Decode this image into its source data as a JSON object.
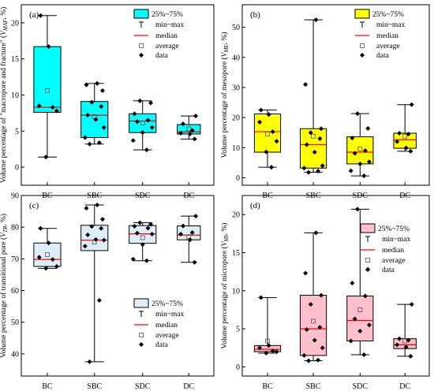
{
  "legend": {
    "box": "25%~75%",
    "range": "min~max",
    "median": "median",
    "average": "average",
    "data": "data"
  },
  "chart_data": [
    {
      "type": "box",
      "panel_label": "(a)",
      "ylabel": "Volume percentage of \"macropore and fracture\" (VMAF, %)",
      "ylabel_main": "Volume percentage of \"macropore and fracture\" (",
      "ylabel_var": "V",
      "ylabel_sub": "MAF",
      "ylabel_end": ", %)",
      "color": "#00ffff",
      "legend_position": "top-right",
      "ylim": [
        -2.5,
        22.5
      ],
      "yticks": [
        0,
        5,
        10,
        15,
        20
      ],
      "categories": [
        "BC",
        "SBC",
        "SDC",
        "DC"
      ],
      "stats": [
        {
          "min": 1.4,
          "q1": 7.6,
          "median": 8.3,
          "q3": 16.7,
          "max": 21.0,
          "mean": 10.6
        },
        {
          "min": 3.2,
          "q1": 4.1,
          "median": 7.2,
          "q3": 9.1,
          "max": 11.6,
          "mean": 7.0
        },
        {
          "min": 2.4,
          "q1": 4.8,
          "median": 6.4,
          "q3": 7.4,
          "max": 9.2,
          "mean": 6.1
        },
        {
          "min": 3.9,
          "q1": 4.6,
          "median": 4.9,
          "q3": 5.9,
          "max": 7.1,
          "mean": 5.3
        }
      ],
      "points": [
        [
          21.0,
          16.7,
          8.5,
          8.3,
          7.8,
          1.4
        ],
        [
          11.6,
          11.4,
          10.6,
          9.0,
          8.4,
          7.2,
          6.6,
          5.5,
          4.1,
          3.4,
          3.2
        ],
        [
          9.2,
          8.9,
          7.4,
          6.5,
          6.3,
          5.5,
          4.8,
          3.7,
          2.4
        ],
        [
          7.1,
          6.0,
          5.1,
          4.7,
          4.6,
          3.9
        ]
      ]
    },
    {
      "type": "box",
      "panel_label": "(b)",
      "ylabel": "Volume percentage of mesopore (VME, %)",
      "ylabel_main": "Volume percentage of mesopore (",
      "ylabel_var": "V",
      "ylabel_sub": "ME",
      "ylabel_end": ", %)",
      "color": "#ffff00",
      "legend_position": "top-right",
      "ylim": [
        -2.5,
        57.5
      ],
      "yticks": [
        0,
        10,
        20,
        30,
        40,
        50
      ],
      "categories": [
        "BC",
        "SBC",
        "SDC",
        "DC"
      ],
      "stats": [
        {
          "min": 3.5,
          "q1": 8.5,
          "median": 15.3,
          "q3": 21.2,
          "max": 22.5,
          "mean": 14.5
        },
        {
          "min": 1.8,
          "q1": 3.2,
          "median": 11.0,
          "q3": 16.3,
          "max": 52.5,
          "mean": 13.8
        },
        {
          "min": 0.6,
          "q1": 4.6,
          "median": 8.5,
          "q3": 13.6,
          "max": 21.3,
          "mean": 9.6
        },
        {
          "min": 8.8,
          "q1": 9.8,
          "median": 12.6,
          "q3": 14.8,
          "max": 24.3,
          "mean": 13.8
        }
      ],
      "points": [
        [
          22.5,
          21.0,
          18.5,
          15.3,
          12.1,
          8.6,
          3.5
        ],
        [
          52.5,
          31.0,
          16.3,
          15.0,
          13.0,
          11.0,
          8.5,
          4.0,
          3.2,
          2.2,
          1.8
        ],
        [
          21.3,
          16.4,
          13.2,
          9.0,
          8.1,
          5.3,
          4.6,
          2.3,
          0.6
        ],
        [
          24.3,
          14.8,
          14.5,
          12.0,
          9.9,
          8.8
        ]
      ]
    },
    {
      "type": "box",
      "panel_label": "(c)",
      "ylabel": "Volume percentage of transitional pore (VTR, %)",
      "ylabel_main": "Volume percentage of transitional pore (",
      "ylabel_var": "V",
      "ylabel_sub": "TR",
      "ylabel_end": ", %)",
      "color": "#ddeef8",
      "legend_position": "bottom-right",
      "ylim": [
        33,
        90
      ],
      "yticks": [
        40,
        50,
        60,
        70,
        80,
        90
      ],
      "categories": [
        "BC",
        "SBC",
        "SDC",
        "DC"
      ],
      "stats": [
        {
          "min": 67.0,
          "q1": 67.6,
          "median": 69.8,
          "q3": 75.0,
          "max": 79.6,
          "mean": 71.3
        },
        {
          "min": 37.5,
          "q1": 72.6,
          "median": 75.9,
          "q3": 80.6,
          "max": 87.0,
          "mean": 75.3
        },
        {
          "min": 69.4,
          "q1": 74.9,
          "median": 77.9,
          "q3": 80.5,
          "max": 81.4,
          "mean": 76.7
        },
        {
          "min": 68.9,
          "q1": 76.0,
          "median": 77.5,
          "q3": 80.4,
          "max": 83.5,
          "mean": 77.0
        }
      ],
      "points": [
        [
          79.6,
          75.0,
          70.5,
          69.8,
          67.6,
          67.0
        ],
        [
          87.0,
          86.0,
          82.5,
          80.2,
          79.6,
          77.6,
          76.1,
          75.9,
          74.0,
          56.9,
          37.5
        ],
        [
          81.4,
          80.9,
          80.3,
          79.7,
          78.1,
          77.8,
          74.5,
          69.9,
          69.4
        ],
        [
          83.5,
          80.4,
          78.3,
          77.8,
          76.0,
          68.9
        ]
      ]
    },
    {
      "type": "box",
      "panel_label": "(d)",
      "ylabel": "Volume percentage of micropore (VMI, %)",
      "ylabel_main": "Volume percentage of micropore (",
      "ylabel_var": "V",
      "ylabel_sub": "MI",
      "ylabel_end": ", %)",
      "color": "#ffc0cb",
      "legend_position": "top-right",
      "ylim": [
        -1.2,
        22.5
      ],
      "yticks": [
        0,
        5,
        10,
        15,
        20
      ],
      "categories": [
        "BC",
        "SBC",
        "SDC",
        "DC"
      ],
      "stats": [
        {
          "min": 1.8,
          "q1": 2.0,
          "median": 2.3,
          "q3": 2.8,
          "max": 9.1,
          "mean": 3.4
        },
        {
          "min": 0.8,
          "q1": 1.5,
          "median": 5.0,
          "q3": 9.4,
          "max": 17.6,
          "mean": 6.0
        },
        {
          "min": 1.6,
          "q1": 3.4,
          "median": 6.1,
          "q3": 9.3,
          "max": 20.7,
          "mean": 7.5
        },
        {
          "min": 1.4,
          "q1": 2.4,
          "median": 2.9,
          "q3": 3.7,
          "max": 8.2,
          "mean": 3.4
        }
      ],
      "points": [
        [
          9.1,
          2.8,
          2.5,
          2.1,
          2.0,
          1.8
        ],
        [
          17.6,
          12.3,
          9.4,
          8.2,
          5.2,
          4.9,
          3.5,
          2.5,
          1.5,
          0.9,
          0.8
        ],
        [
          20.7,
          12.8,
          11.0,
          9.3,
          6.3,
          5.5,
          4.7,
          3.4,
          1.6
        ],
        [
          8.2,
          3.7,
          3.5,
          2.9,
          2.6,
          1.4
        ]
      ]
    }
  ]
}
